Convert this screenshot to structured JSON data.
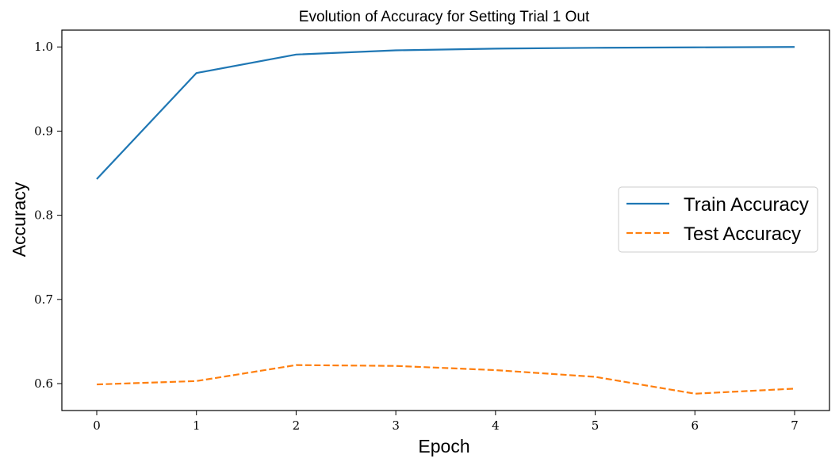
{
  "chart_data": {
    "type": "line",
    "title": "Evolution of Accuracy for Setting Trial 1 Out",
    "xlabel": "Epoch",
    "ylabel": "Accuracy",
    "x": [
      0,
      1,
      2,
      3,
      4,
      5,
      6,
      7
    ],
    "xlim": [
      -0.35,
      7.35
    ],
    "ylim": [
      0.568,
      1.02
    ],
    "xticks": [
      "0",
      "1",
      "2",
      "3",
      "4",
      "5",
      "6",
      "7"
    ],
    "yticks": [
      "0.6",
      "0.7",
      "0.8",
      "0.9",
      "1.0"
    ],
    "grid": false,
    "legend_position": "center-right",
    "series": [
      {
        "name": "Train Accuracy",
        "values": [
          0.843,
          0.969,
          0.991,
          0.996,
          0.998,
          0.999,
          0.9995,
          1.0
        ],
        "color": "#1f77b4",
        "style": "solid"
      },
      {
        "name": "Test Accuracy",
        "values": [
          0.599,
          0.603,
          0.622,
          0.621,
          0.616,
          0.608,
          0.588,
          0.594
        ],
        "color": "#ff7f0e",
        "style": "dashed"
      }
    ]
  }
}
